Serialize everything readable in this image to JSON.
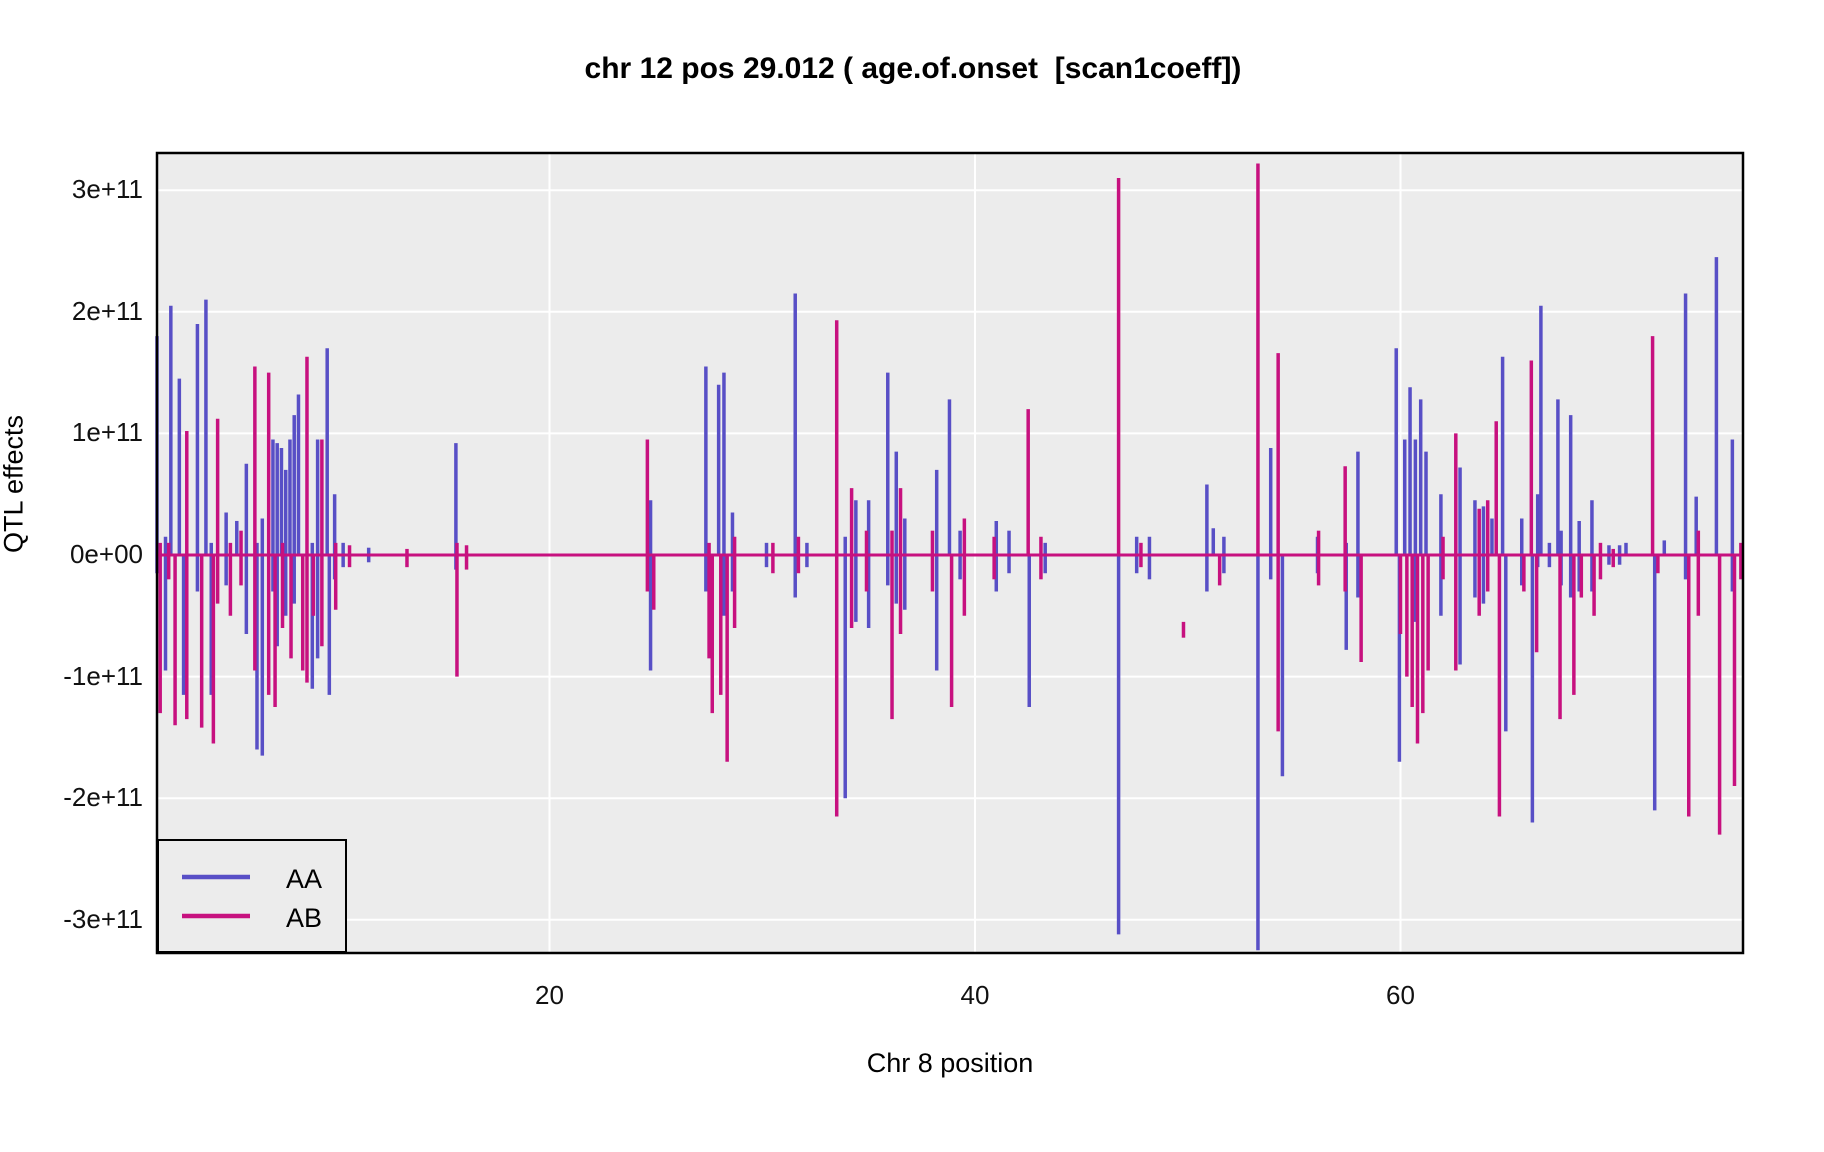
{
  "title": "chr 12 pos 29.012 ( age.of.onset  [scan1coeff])",
  "chart_data": {
    "type": "line",
    "subtype": "impulse-spikes (QTL coefficient scan)",
    "title": "chr 12 pos 29.012 ( age.of.onset  [scan1coeff])",
    "xlabel": "Chr 8 position",
    "ylabel": "QTL effects",
    "xlim": [
      1.55,
      76.1
    ],
    "ylim": [
      -329000000000.0,
      331000000000.0
    ],
    "x_ticks": [
      20,
      40,
      60
    ],
    "y_ticks": [
      {
        "v": 3,
        "label": "3e+11"
      },
      {
        "v": 2,
        "label": "2e+11"
      },
      {
        "v": 1,
        "label": "1e+11"
      },
      {
        "v": 0,
        "label": "0e+00"
      },
      {
        "v": -1,
        "label": "-1e+11"
      },
      {
        "v": -2,
        "label": "-2e+11"
      },
      {
        "v": -3,
        "label": "-3e+11"
      }
    ],
    "value_unit_e11": 100000000000.0,
    "grid": "major white gridlines on gray panel, no minor, black panel border",
    "legend_position": "bottom-left",
    "panel_bg": "#ECECEC",
    "grid_color": "#FFFFFF",
    "border_color": "#000000",
    "baseline_value": 0,
    "series": [
      {
        "name": "AA",
        "color": "#584FC6",
        "segments_e11": [
          [
            1.55,
            -0.15,
            1.8
          ],
          [
            1.95,
            -0.95,
            0.15
          ],
          [
            2.2,
            0,
            2.05
          ],
          [
            2.6,
            0,
            1.45
          ],
          [
            2.8,
            -1.15,
            0
          ],
          [
            3.45,
            -0.3,
            1.9
          ],
          [
            3.85,
            0,
            2.1
          ],
          [
            4.1,
            -1.15,
            0.1
          ],
          [
            4.8,
            -0.25,
            0.35
          ],
          [
            5.3,
            0,
            0.28
          ],
          [
            5.75,
            -0.65,
            0.75
          ],
          [
            6.25,
            -1.6,
            0.1
          ],
          [
            6.5,
            -1.65,
            0.3
          ],
          [
            7.0,
            -0.3,
            0.95
          ],
          [
            7.2,
            -0.75,
            0.92
          ],
          [
            7.4,
            0,
            0.88
          ],
          [
            7.6,
            -0.5,
            0.7
          ],
          [
            7.8,
            0,
            0.95
          ],
          [
            8.0,
            -0.4,
            1.15
          ],
          [
            8.2,
            0,
            1.32
          ],
          [
            8.85,
            -1.1,
            0.1
          ],
          [
            9.1,
            -0.85,
            0.95
          ],
          [
            9.55,
            0,
            1.7
          ],
          [
            9.65,
            -1.15,
            0
          ],
          [
            9.9,
            -0.2,
            0.5
          ],
          [
            10.3,
            -0.1,
            0.1
          ],
          [
            11.5,
            -0.06,
            0.06
          ],
          [
            15.6,
            -0.12,
            0.92
          ],
          [
            24.75,
            -0.95,
            0.45
          ],
          [
            27.35,
            -0.3,
            1.55
          ],
          [
            27.95,
            0,
            1.4
          ],
          [
            28.2,
            -0.5,
            1.5
          ],
          [
            28.6,
            -0.3,
            0.35
          ],
          [
            30.2,
            -0.1,
            0.1
          ],
          [
            31.55,
            -0.35,
            2.15
          ],
          [
            32.1,
            -0.1,
            0.1
          ],
          [
            33.9,
            -2.0,
            0.15
          ],
          [
            34.4,
            -0.55,
            0.45
          ],
          [
            35.0,
            -0.6,
            0.45
          ],
          [
            35.9,
            -0.25,
            1.5
          ],
          [
            36.3,
            -0.4,
            0.85
          ],
          [
            36.7,
            -0.45,
            0.3
          ],
          [
            38.2,
            -0.95,
            0.7
          ],
          [
            38.8,
            0,
            1.28
          ],
          [
            39.3,
            -0.2,
            0.2
          ],
          [
            41.0,
            -0.3,
            0.28
          ],
          [
            41.6,
            -0.15,
            0.2
          ],
          [
            42.55,
            -1.25,
            0
          ],
          [
            43.3,
            -0.15,
            0.1
          ],
          [
            46.75,
            -3.12,
            0
          ],
          [
            47.6,
            -0.15,
            0.15
          ],
          [
            48.2,
            -0.2,
            0.15
          ],
          [
            50.9,
            -0.3,
            0.58
          ],
          [
            51.2,
            0,
            0.22
          ],
          [
            51.7,
            -0.15,
            0.15
          ],
          [
            53.3,
            -3.25,
            0
          ],
          [
            53.9,
            -0.2,
            0.88
          ],
          [
            54.45,
            -1.82,
            0
          ],
          [
            56.1,
            -0.15,
            0.15
          ],
          [
            57.45,
            -0.78,
            0.1
          ],
          [
            58.0,
            -0.35,
            0.85
          ],
          [
            59.8,
            0,
            1.7
          ],
          [
            59.95,
            -1.7,
            0
          ],
          [
            60.2,
            0,
            0.95
          ],
          [
            60.45,
            0,
            1.38
          ],
          [
            60.7,
            -0.55,
            0.95
          ],
          [
            60.95,
            0,
            1.28
          ],
          [
            61.2,
            0,
            0.85
          ],
          [
            61.9,
            -0.5,
            0.5
          ],
          [
            62.8,
            -0.9,
            0.72
          ],
          [
            63.5,
            -0.35,
            0.45
          ],
          [
            63.9,
            -0.4,
            0.4
          ],
          [
            64.3,
            0,
            0.3
          ],
          [
            64.8,
            0,
            1.63
          ],
          [
            64.95,
            -1.45,
            0
          ],
          [
            65.7,
            -0.25,
            0.3
          ],
          [
            66.2,
            -2.2,
            0
          ],
          [
            66.45,
            -0.1,
            0.5
          ],
          [
            66.6,
            0,
            2.05
          ],
          [
            67.0,
            -0.1,
            0.1
          ],
          [
            67.4,
            0,
            1.28
          ],
          [
            67.55,
            -0.25,
            0.2
          ],
          [
            68.0,
            -0.35,
            1.15
          ],
          [
            68.4,
            -0.3,
            0.28
          ],
          [
            69.0,
            -0.3,
            0.45
          ],
          [
            69.8,
            -0.08,
            0.08
          ],
          [
            70.3,
            -0.08,
            0.08
          ],
          [
            70.6,
            0,
            0.1
          ],
          [
            71.95,
            -2.1,
            0
          ],
          [
            72.4,
            0,
            0.12
          ],
          [
            73.4,
            -0.2,
            2.15
          ],
          [
            73.9,
            0,
            0.48
          ],
          [
            74.85,
            0,
            2.45
          ],
          [
            75.6,
            -0.3,
            0.95
          ]
        ]
      },
      {
        "name": "AB",
        "color": "#C7117F",
        "segments_e11": [
          [
            1.7,
            -1.3,
            0.1
          ],
          [
            2.1,
            -0.2,
            0.1
          ],
          [
            2.4,
            -1.4,
            0
          ],
          [
            2.95,
            -1.35,
            1.02
          ],
          [
            3.65,
            -1.42,
            0
          ],
          [
            4.2,
            -1.55,
            0
          ],
          [
            4.4,
            -0.4,
            1.12
          ],
          [
            5.0,
            -0.5,
            0.1
          ],
          [
            5.5,
            -0.25,
            0.2
          ],
          [
            6.15,
            -0.95,
            1.55
          ],
          [
            6.8,
            -1.15,
            1.5
          ],
          [
            7.1,
            -1.25,
            0
          ],
          [
            7.45,
            -0.6,
            0.1
          ],
          [
            7.85,
            -0.85,
            0
          ],
          [
            8.4,
            -0.95,
            0
          ],
          [
            8.6,
            -1.05,
            1.63
          ],
          [
            8.9,
            -0.5,
            0
          ],
          [
            9.3,
            -0.75,
            0.95
          ],
          [
            9.95,
            -0.45,
            0.1
          ],
          [
            10.6,
            -0.1,
            0.08
          ],
          [
            13.3,
            -0.1,
            0.05
          ],
          [
            15.65,
            -1.0,
            0.1
          ],
          [
            16.1,
            -0.12,
            0.08
          ],
          [
            24.6,
            -0.3,
            0.95
          ],
          [
            24.9,
            -0.45,
            0
          ],
          [
            27.5,
            -0.85,
            0.1
          ],
          [
            27.65,
            -1.3,
            0
          ],
          [
            28.05,
            -1.15,
            0
          ],
          [
            28.35,
            -1.7,
            0
          ],
          [
            28.7,
            -0.6,
            0.15
          ],
          [
            30.5,
            -0.15,
            0.1
          ],
          [
            31.7,
            -0.15,
            0.15
          ],
          [
            33.5,
            -2.15,
            1.93
          ],
          [
            34.2,
            -0.6,
            0.55
          ],
          [
            34.9,
            -0.3,
            0.2
          ],
          [
            36.1,
            -1.35,
            0.2
          ],
          [
            36.5,
            -0.65,
            0.55
          ],
          [
            38.0,
            -0.3,
            0.2
          ],
          [
            38.9,
            -1.25,
            0
          ],
          [
            39.5,
            -0.5,
            0.3
          ],
          [
            40.9,
            -0.2,
            0.15
          ],
          [
            42.5,
            0,
            1.2
          ],
          [
            43.1,
            -0.2,
            0.15
          ],
          [
            46.75,
            0,
            3.1
          ],
          [
            47.8,
            -0.1,
            0.1
          ],
          [
            49.8,
            -0.68,
            -0.55
          ],
          [
            51.5,
            -0.25,
            0
          ],
          [
            53.3,
            0,
            3.22
          ],
          [
            54.25,
            -1.45,
            1.66
          ],
          [
            56.15,
            -0.25,
            0.2
          ],
          [
            57.4,
            -0.3,
            0.73
          ],
          [
            58.15,
            -0.88,
            0
          ],
          [
            60.0,
            -0.65,
            0
          ],
          [
            60.3,
            -1.0,
            0
          ],
          [
            60.55,
            -1.25,
            0
          ],
          [
            60.8,
            -1.55,
            0
          ],
          [
            61.05,
            -1.3,
            0
          ],
          [
            61.3,
            -0.95,
            0
          ],
          [
            62.0,
            -0.2,
            0.15
          ],
          [
            62.6,
            -0.95,
            1.0
          ],
          [
            63.7,
            -0.5,
            0.38
          ],
          [
            64.1,
            -0.3,
            0.45
          ],
          [
            64.5,
            0,
            1.1
          ],
          [
            64.65,
            -2.15,
            0
          ],
          [
            65.8,
            -0.3,
            0
          ],
          [
            66.15,
            0,
            1.6
          ],
          [
            66.4,
            -0.8,
            0
          ],
          [
            67.5,
            -1.35,
            0
          ],
          [
            68.15,
            -1.15,
            0
          ],
          [
            68.5,
            -0.35,
            0
          ],
          [
            69.1,
            -0.5,
            0
          ],
          [
            69.4,
            -0.2,
            0.1
          ],
          [
            70.0,
            -0.1,
            0.05
          ],
          [
            71.85,
            0,
            1.8
          ],
          [
            72.1,
            -0.15,
            0
          ],
          [
            73.55,
            -2.15,
            0
          ],
          [
            74.0,
            -0.5,
            0.2
          ],
          [
            75.0,
            -2.3,
            0
          ],
          [
            75.7,
            -1.9,
            0
          ],
          [
            76.0,
            -0.2,
            0.1
          ]
        ]
      }
    ]
  },
  "legend": {
    "items": [
      {
        "label": "AA"
      },
      {
        "label": "AB"
      }
    ]
  }
}
